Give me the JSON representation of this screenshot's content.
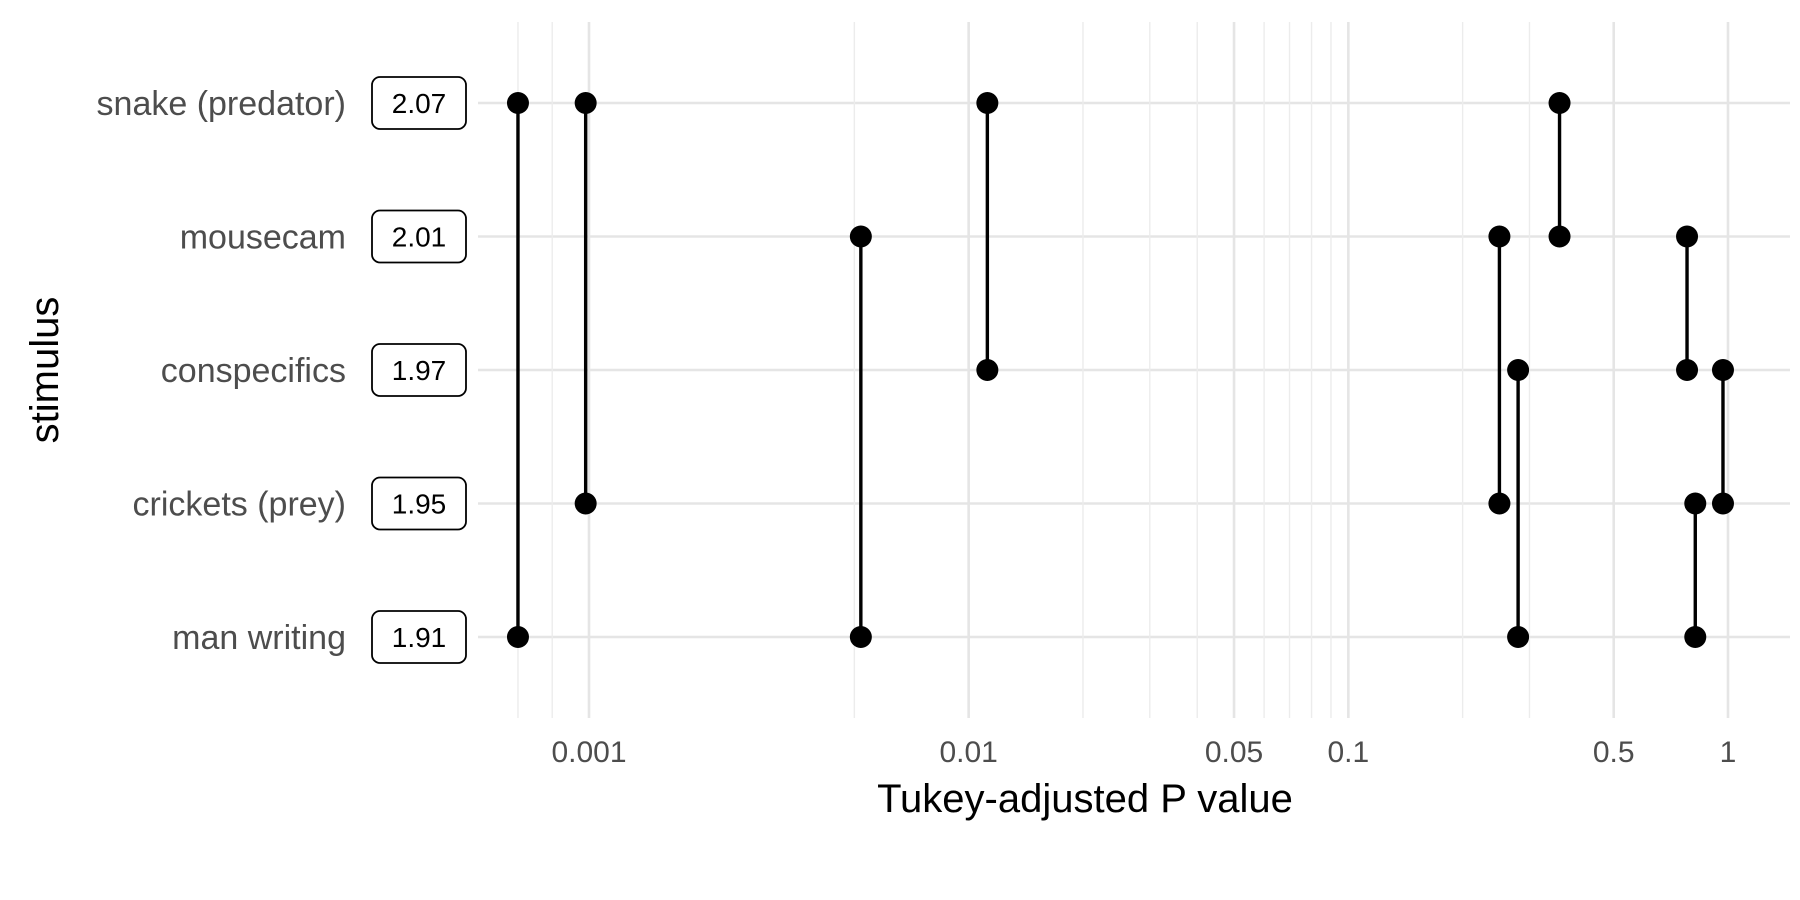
{
  "chart_data": {
    "type": "scatter",
    "title": "",
    "xlabel": "Tukey-adjusted P value",
    "ylabel": "stimulus",
    "x_scale": "log10",
    "xlim": [
      0.00055,
      1.4
    ],
    "x_ticks": [
      {
        "value": 0.001,
        "label": "0.001"
      },
      {
        "value": 0.01,
        "label": "0.01"
      },
      {
        "value": 0.05,
        "label": "0.05"
      },
      {
        "value": 0.1,
        "label": "0.1"
      },
      {
        "value": 0.5,
        "label": "0.5"
      },
      {
        "value": 1,
        "label": "1"
      }
    ],
    "x_minor_grid": [
      0.00065,
      0.0008,
      0.005,
      0.02,
      0.03,
      0.04,
      0.06,
      0.07,
      0.08,
      0.09,
      0.2,
      0.3
    ],
    "categories": [
      "snake (predator)",
      "mousecam",
      "conspecifics",
      "crickets (prey)",
      "man writing"
    ],
    "category_values": [
      "2.07",
      "2.01",
      "1.97",
      "1.95",
      "1.91"
    ],
    "grid": true,
    "legend": "none",
    "comparisons": [
      {
        "p": 0.00065,
        "between": [
          "snake (predator)",
          "man writing"
        ]
      },
      {
        "p": 0.00098,
        "between": [
          "snake (predator)",
          "crickets (prey)"
        ]
      },
      {
        "p": 0.0112,
        "between": [
          "snake (predator)",
          "conspecifics"
        ]
      },
      {
        "p": 0.36,
        "between": [
          "snake (predator)",
          "mousecam"
        ]
      },
      {
        "p": 0.0052,
        "between": [
          "mousecam",
          "man writing"
        ]
      },
      {
        "p": 0.25,
        "between": [
          "mousecam",
          "crickets (prey)"
        ]
      },
      {
        "p": 0.78,
        "between": [
          "mousecam",
          "conspecifics"
        ]
      },
      {
        "p": 0.28,
        "between": [
          "conspecifics",
          "man writing"
        ]
      },
      {
        "p": 0.97,
        "between": [
          "conspecifics",
          "crickets (prey)"
        ]
      },
      {
        "p": 0.82,
        "between": [
          "crickets (prey)",
          "man writing"
        ]
      }
    ]
  }
}
